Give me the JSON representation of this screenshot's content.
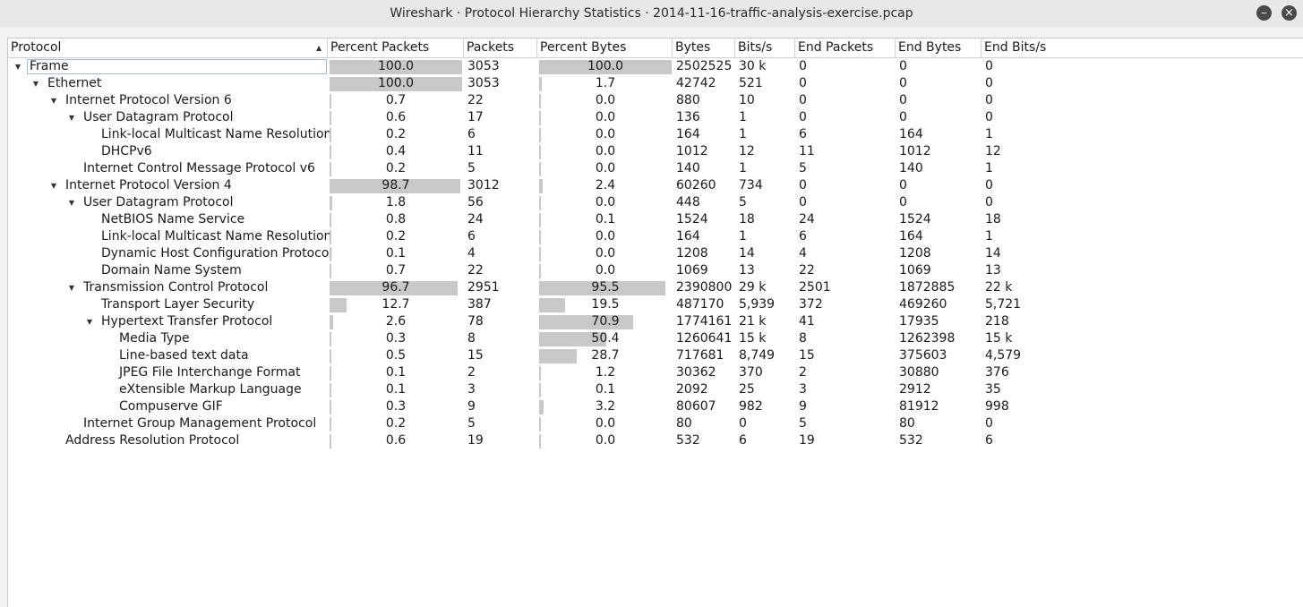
{
  "window": {
    "title": "Wireshark · Protocol Hierarchy Statistics · 2014-11-16-traffic-analysis-exercise.pcap",
    "minimize_icon": "minimize-icon",
    "close_icon": "close-icon"
  },
  "columns": [
    "Protocol",
    "Percent Packets",
    "Packets",
    "Percent Bytes",
    "Bytes",
    "Bits/s",
    "End Packets",
    "End Bytes",
    "End Bits/s"
  ],
  "rows": [
    {
      "protocol": "Frame",
      "depth": 0,
      "expander": "expanded",
      "pct_packets": "100.0",
      "pct_packets_value": 100.0,
      "packets": "3053",
      "pct_bytes": "100.0",
      "pct_bytes_value": 100.0,
      "bytes": "2502525",
      "bits_s": "30 k",
      "end_packets": "0",
      "end_bytes": "0",
      "end_bits_s": "0",
      "selected": true
    },
    {
      "protocol": "Ethernet",
      "depth": 1,
      "expander": "expanded",
      "pct_packets": "100.0",
      "pct_packets_value": 100.0,
      "packets": "3053",
      "pct_bytes": "1.7",
      "pct_bytes_value": 1.7,
      "bytes": "42742",
      "bits_s": "521",
      "end_packets": "0",
      "end_bytes": "0",
      "end_bits_s": "0"
    },
    {
      "protocol": "Internet Protocol Version 6",
      "depth": 2,
      "expander": "expanded",
      "pct_packets": "0.7",
      "pct_packets_value": 0.7,
      "packets": "22",
      "pct_bytes": "0.0",
      "pct_bytes_value": 0.0,
      "bytes": "880",
      "bits_s": "10",
      "end_packets": "0",
      "end_bytes": "0",
      "end_bits_s": "0"
    },
    {
      "protocol": "User Datagram Protocol",
      "depth": 3,
      "expander": "expanded",
      "pct_packets": "0.6",
      "pct_packets_value": 0.6,
      "packets": "17",
      "pct_bytes": "0.0",
      "pct_bytes_value": 0.0,
      "bytes": "136",
      "bits_s": "1",
      "end_packets": "0",
      "end_bytes": "0",
      "end_bits_s": "0"
    },
    {
      "protocol": "Link-local Multicast Name Resolution",
      "depth": 4,
      "expander": "none",
      "pct_packets": "0.2",
      "pct_packets_value": 0.2,
      "packets": "6",
      "pct_bytes": "0.0",
      "pct_bytes_value": 0.0,
      "bytes": "164",
      "bits_s": "1",
      "end_packets": "6",
      "end_bytes": "164",
      "end_bits_s": "1"
    },
    {
      "protocol": "DHCPv6",
      "depth": 4,
      "expander": "none",
      "pct_packets": "0.4",
      "pct_packets_value": 0.4,
      "packets": "11",
      "pct_bytes": "0.0",
      "pct_bytes_value": 0.0,
      "bytes": "1012",
      "bits_s": "12",
      "end_packets": "11",
      "end_bytes": "1012",
      "end_bits_s": "12"
    },
    {
      "protocol": "Internet Control Message Protocol v6",
      "depth": 3,
      "expander": "none",
      "pct_packets": "0.2",
      "pct_packets_value": 0.2,
      "packets": "5",
      "pct_bytes": "0.0",
      "pct_bytes_value": 0.0,
      "bytes": "140",
      "bits_s": "1",
      "end_packets": "5",
      "end_bytes": "140",
      "end_bits_s": "1"
    },
    {
      "protocol": "Internet Protocol Version 4",
      "depth": 2,
      "expander": "expanded",
      "pct_packets": "98.7",
      "pct_packets_value": 98.7,
      "packets": "3012",
      "pct_bytes": "2.4",
      "pct_bytes_value": 2.4,
      "bytes": "60260",
      "bits_s": "734",
      "end_packets": "0",
      "end_bytes": "0",
      "end_bits_s": "0"
    },
    {
      "protocol": "User Datagram Protocol",
      "depth": 3,
      "expander": "expanded",
      "pct_packets": "1.8",
      "pct_packets_value": 1.8,
      "packets": "56",
      "pct_bytes": "0.0",
      "pct_bytes_value": 0.0,
      "bytes": "448",
      "bits_s": "5",
      "end_packets": "0",
      "end_bytes": "0",
      "end_bits_s": "0"
    },
    {
      "protocol": "NetBIOS Name Service",
      "depth": 4,
      "expander": "none",
      "pct_packets": "0.8",
      "pct_packets_value": 0.8,
      "packets": "24",
      "pct_bytes": "0.1",
      "pct_bytes_value": 0.1,
      "bytes": "1524",
      "bits_s": "18",
      "end_packets": "24",
      "end_bytes": "1524",
      "end_bits_s": "18"
    },
    {
      "protocol": "Link-local Multicast Name Resolution",
      "depth": 4,
      "expander": "none",
      "pct_packets": "0.2",
      "pct_packets_value": 0.2,
      "packets": "6",
      "pct_bytes": "0.0",
      "pct_bytes_value": 0.0,
      "bytes": "164",
      "bits_s": "1",
      "end_packets": "6",
      "end_bytes": "164",
      "end_bits_s": "1"
    },
    {
      "protocol": "Dynamic Host Configuration Protocol",
      "depth": 4,
      "expander": "none",
      "pct_packets": "0.1",
      "pct_packets_value": 0.1,
      "packets": "4",
      "pct_bytes": "0.0",
      "pct_bytes_value": 0.0,
      "bytes": "1208",
      "bits_s": "14",
      "end_packets": "4",
      "end_bytes": "1208",
      "end_bits_s": "14"
    },
    {
      "protocol": "Domain Name System",
      "depth": 4,
      "expander": "none",
      "pct_packets": "0.7",
      "pct_packets_value": 0.7,
      "packets": "22",
      "pct_bytes": "0.0",
      "pct_bytes_value": 0.0,
      "bytes": "1069",
      "bits_s": "13",
      "end_packets": "22",
      "end_bytes": "1069",
      "end_bits_s": "13"
    },
    {
      "protocol": "Transmission Control Protocol",
      "depth": 3,
      "expander": "expanded",
      "pct_packets": "96.7",
      "pct_packets_value": 96.7,
      "packets": "2951",
      "pct_bytes": "95.5",
      "pct_bytes_value": 95.5,
      "bytes": "2390800",
      "bits_s": "29 k",
      "end_packets": "2501",
      "end_bytes": "1872885",
      "end_bits_s": "22 k"
    },
    {
      "protocol": "Transport Layer Security",
      "depth": 4,
      "expander": "none",
      "pct_packets": "12.7",
      "pct_packets_value": 12.7,
      "packets": "387",
      "pct_bytes": "19.5",
      "pct_bytes_value": 19.5,
      "bytes": "487170",
      "bits_s": "5,939",
      "end_packets": "372",
      "end_bytes": "469260",
      "end_bits_s": "5,721"
    },
    {
      "protocol": "Hypertext Transfer Protocol",
      "depth": 4,
      "expander": "expanded",
      "pct_packets": "2.6",
      "pct_packets_value": 2.6,
      "packets": "78",
      "pct_bytes": "70.9",
      "pct_bytes_value": 70.9,
      "bytes": "1774161",
      "bits_s": "21 k",
      "end_packets": "41",
      "end_bytes": "17935",
      "end_bits_s": "218"
    },
    {
      "protocol": "Media Type",
      "depth": 5,
      "expander": "none",
      "pct_packets": "0.3",
      "pct_packets_value": 0.3,
      "packets": "8",
      "pct_bytes": "50.4",
      "pct_bytes_value": 50.4,
      "bytes": "1260641",
      "bits_s": "15 k",
      "end_packets": "8",
      "end_bytes": "1262398",
      "end_bits_s": "15 k"
    },
    {
      "protocol": "Line-based text data",
      "depth": 5,
      "expander": "none",
      "pct_packets": "0.5",
      "pct_packets_value": 0.5,
      "packets": "15",
      "pct_bytes": "28.7",
      "pct_bytes_value": 28.7,
      "bytes": "717681",
      "bits_s": "8,749",
      "end_packets": "15",
      "end_bytes": "375603",
      "end_bits_s": "4,579"
    },
    {
      "protocol": "JPEG File Interchange Format",
      "depth": 5,
      "expander": "none",
      "pct_packets": "0.1",
      "pct_packets_value": 0.1,
      "packets": "2",
      "pct_bytes": "1.2",
      "pct_bytes_value": 1.2,
      "bytes": "30362",
      "bits_s": "370",
      "end_packets": "2",
      "end_bytes": "30880",
      "end_bits_s": "376"
    },
    {
      "protocol": "eXtensible Markup Language",
      "depth": 5,
      "expander": "none",
      "pct_packets": "0.1",
      "pct_packets_value": 0.1,
      "packets": "3",
      "pct_bytes": "0.1",
      "pct_bytes_value": 0.1,
      "bytes": "2092",
      "bits_s": "25",
      "end_packets": "3",
      "end_bytes": "2912",
      "end_bits_s": "35"
    },
    {
      "protocol": "Compuserve GIF",
      "depth": 5,
      "expander": "none",
      "pct_packets": "0.3",
      "pct_packets_value": 0.3,
      "packets": "9",
      "pct_bytes": "3.2",
      "pct_bytes_value": 3.2,
      "bytes": "80607",
      "bits_s": "982",
      "end_packets": "9",
      "end_bytes": "81912",
      "end_bits_s": "998"
    },
    {
      "protocol": "Internet Group Management Protocol",
      "depth": 3,
      "expander": "none",
      "pct_packets": "0.2",
      "pct_packets_value": 0.2,
      "packets": "5",
      "pct_bytes": "0.0",
      "pct_bytes_value": 0.0,
      "bytes": "80",
      "bits_s": "0",
      "end_packets": "5",
      "end_bytes": "80",
      "end_bits_s": "0"
    },
    {
      "protocol": "Address Resolution Protocol",
      "depth": 2,
      "expander": "none",
      "pct_packets": "0.6",
      "pct_packets_value": 0.6,
      "packets": "19",
      "pct_bytes": "0.0",
      "pct_bytes_value": 0.0,
      "bytes": "532",
      "bits_s": "6",
      "end_packets": "19",
      "end_bytes": "532",
      "end_bits_s": "6"
    }
  ]
}
